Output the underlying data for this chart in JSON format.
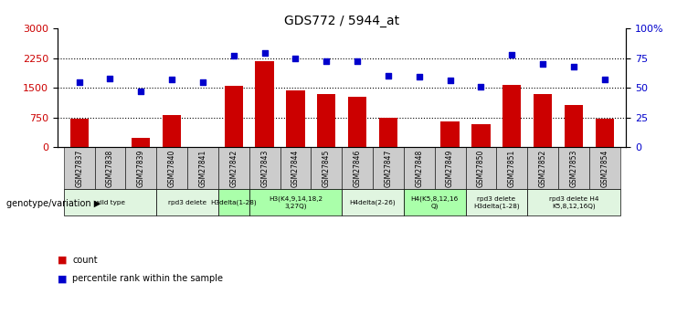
{
  "title": "GDS772 / 5944_at",
  "samples": [
    "GSM27837",
    "GSM27838",
    "GSM27839",
    "GSM27840",
    "GSM27841",
    "GSM27842",
    "GSM27843",
    "GSM27844",
    "GSM27845",
    "GSM27846",
    "GSM27847",
    "GSM27848",
    "GSM27849",
    "GSM27850",
    "GSM27851",
    "GSM27852",
    "GSM27853",
    "GSM27854"
  ],
  "counts": [
    720,
    0,
    230,
    820,
    0,
    1550,
    2180,
    1430,
    1330,
    1280,
    740,
    0,
    640,
    580,
    1560,
    1340,
    1060,
    720
  ],
  "percentiles": [
    55,
    58,
    47,
    57,
    55,
    77,
    79,
    75,
    72,
    72,
    60,
    59,
    56,
    51,
    78,
    70,
    68,
    57
  ],
  "bar_color": "#cc0000",
  "dot_color": "#0000cc",
  "ylim_left": [
    0,
    3000
  ],
  "ylim_right": [
    0,
    100
  ],
  "yticks_left": [
    0,
    750,
    1500,
    2250,
    3000
  ],
  "yticks_right": [
    0,
    25,
    50,
    75,
    100
  ],
  "ytick_labels_right": [
    "0",
    "25",
    "50",
    "75",
    "100%"
  ],
  "dotted_line_values": [
    750,
    1500,
    2250
  ],
  "genotype_groups": [
    {
      "label": "wild type",
      "start": 0,
      "end": 2,
      "color": "#e0f5e0"
    },
    {
      "label": "rpd3 delete",
      "start": 3,
      "end": 4,
      "color": "#e0f5e0"
    },
    {
      "label": "H3delta(1-28)",
      "start": 5,
      "end": 5,
      "color": "#aaffaa"
    },
    {
      "label": "H3(K4,9,14,18,2\n3,27Q)",
      "start": 6,
      "end": 8,
      "color": "#aaffaa"
    },
    {
      "label": "H4delta(2-26)",
      "start": 9,
      "end": 10,
      "color": "#e0f5e0"
    },
    {
      "label": "H4(K5,8,12,16\nQ)",
      "start": 11,
      "end": 12,
      "color": "#aaffaa"
    },
    {
      "label": "rpd3 delete\nH3delta(1-28)",
      "start": 13,
      "end": 14,
      "color": "#e0f5e0"
    },
    {
      "label": "rpd3 delete H4\nK5,8,12,16Q)",
      "start": 15,
      "end": 17,
      "color": "#e0f5e0"
    }
  ],
  "sample_label_bg": "#cccccc",
  "legend_count_color": "#cc0000",
  "legend_dot_color": "#0000cc",
  "xlabel_genotype": "genotype/variation",
  "background_color": "#ffffff",
  "plot_bg_color": "#ffffff",
  "tick_label_color_left": "#cc0000",
  "tick_label_color_right": "#0000cc"
}
